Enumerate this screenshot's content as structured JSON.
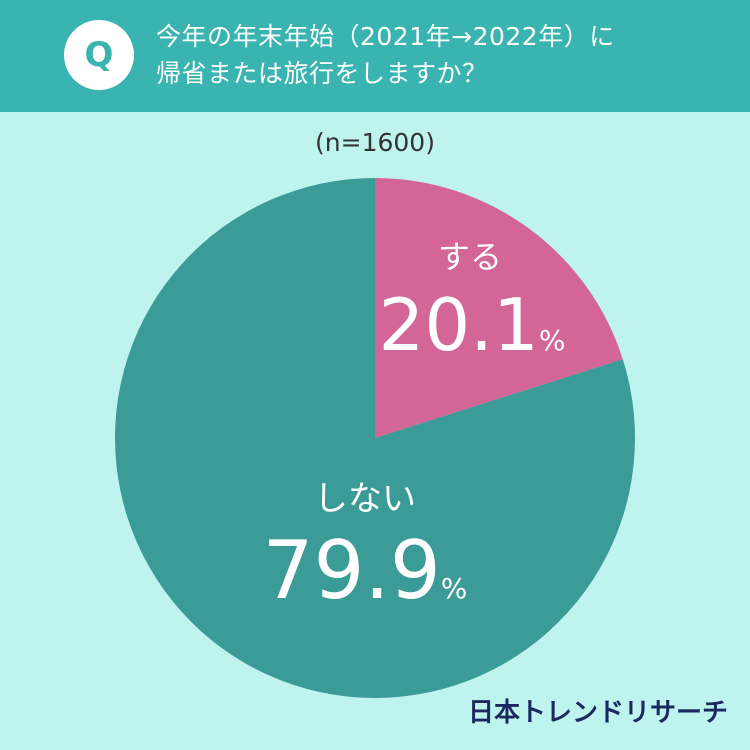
{
  "header": {
    "badge": "Q",
    "title_line1": "今年の年末年始（2021年→2022年）に",
    "title_line2": "帰省または旅行をしますか？"
  },
  "sample_note": "(n=1600)",
  "brand": "日本トレンドリサーチ",
  "colors": {
    "header_bg": "#3ab4b0",
    "page_bg": "#bef3ee",
    "slice_yes": "#d36597",
    "slice_no": "#3a9b97"
  },
  "chart_data": {
    "type": "pie",
    "title": "今年の年末年始（2021年→2022年）に帰省または旅行をしますか？",
    "slices": [
      {
        "label": "する",
        "value": 20.1,
        "display": "20.1",
        "unit": "%",
        "color": "#d36597"
      },
      {
        "label": "しない",
        "value": 79.9,
        "display": "79.9",
        "unit": "%",
        "color": "#3a9b97"
      }
    ]
  }
}
